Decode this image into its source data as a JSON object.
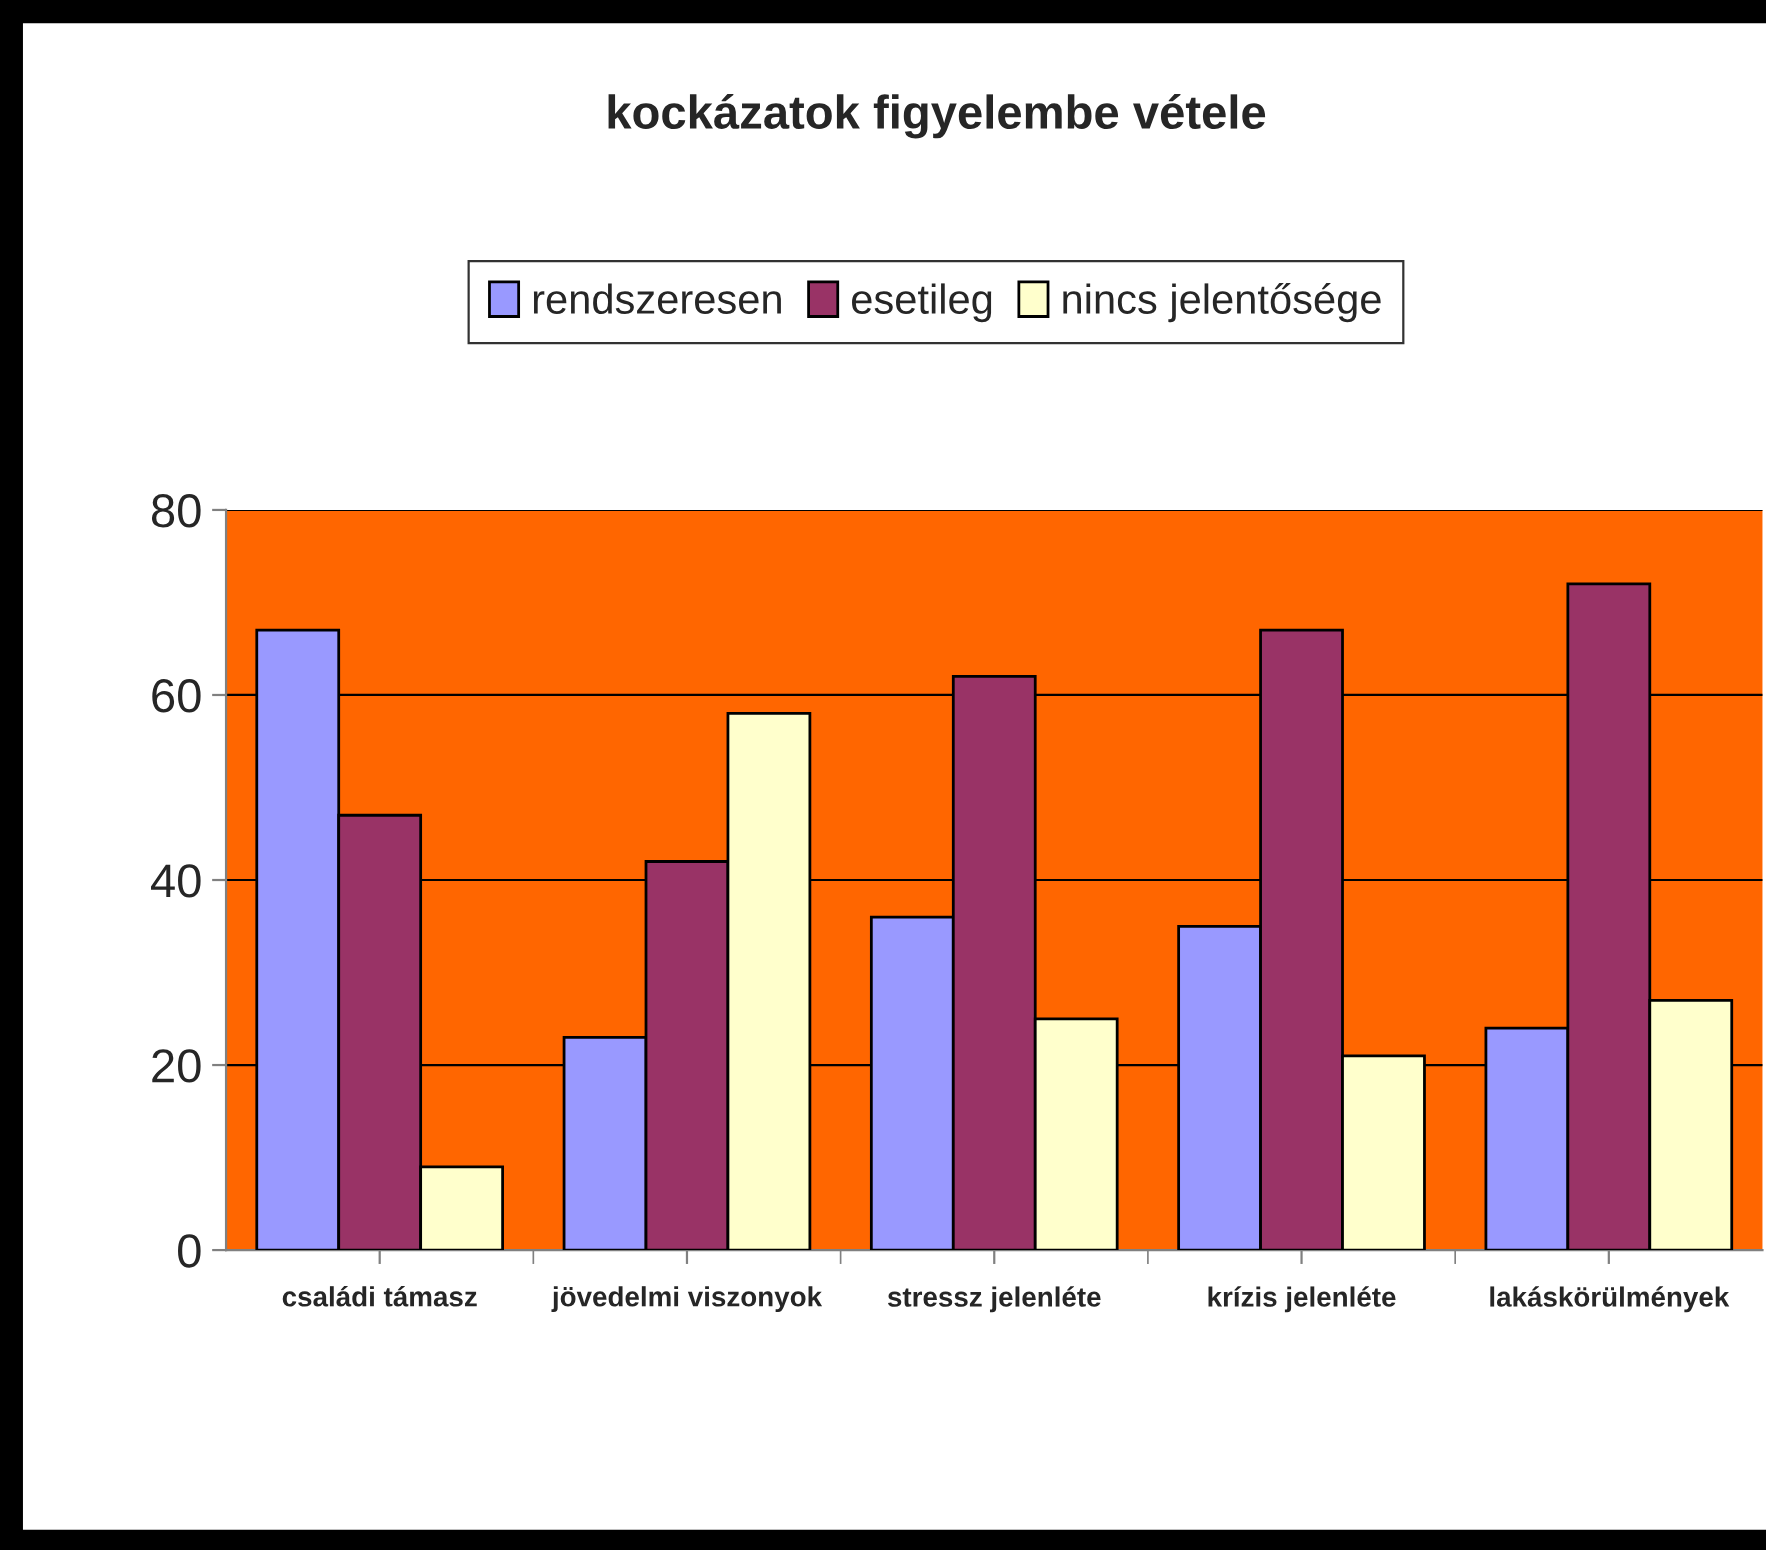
{
  "chart_data": {
    "type": "bar",
    "title": "kockázatok figyelembe vétele",
    "categories": [
      "családi támasz",
      "jövedelmi viszonyok",
      "stressz jelenléte",
      "krízis jelenléte",
      "lakáskörülmények"
    ],
    "series": [
      {
        "name": "rendszeresen",
        "color": "#9999ff",
        "values": [
          67,
          23,
          36,
          35,
          24
        ]
      },
      {
        "name": "esetileg",
        "color": "#993366",
        "values": [
          47,
          42,
          62,
          67,
          72
        ]
      },
      {
        "name": "nincs jelentősége",
        "color": "#ffffcc",
        "values": [
          9,
          58,
          25,
          21,
          27
        ]
      }
    ],
    "ylim": [
      0,
      80
    ],
    "yticks": [
      0,
      20,
      40,
      60,
      80
    ],
    "grid": "y",
    "legend": "top"
  }
}
